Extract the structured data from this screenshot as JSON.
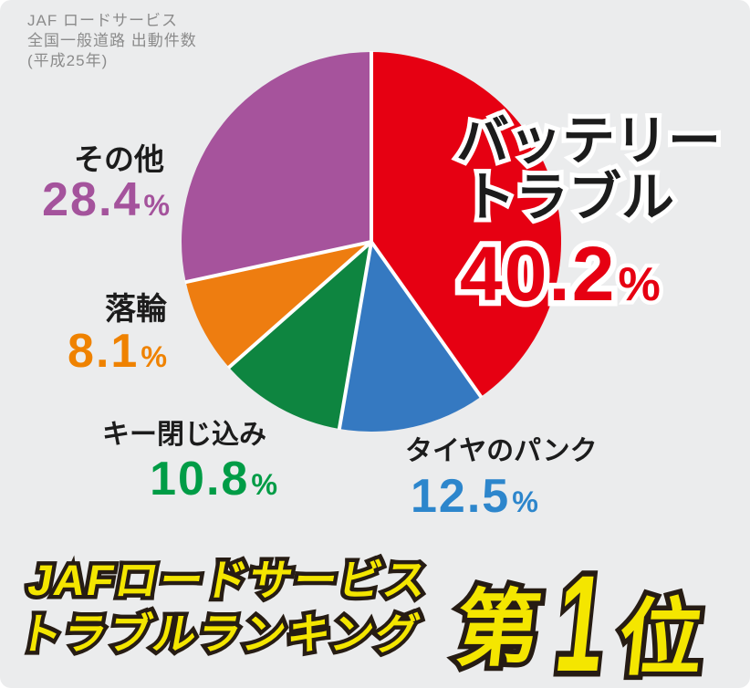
{
  "caption": {
    "line1": "JAF ロードサービス",
    "line2": "全国一般道路 出動件数",
    "line3": "(平成25年)",
    "color": "#8b8b8b"
  },
  "chart_data": {
    "type": "pie",
    "title": "JAF ロードサービス 全国一般道路 出動件数（平成25年）",
    "start_angle_deg": 0,
    "direction": "clockwise",
    "separator_color": "#ffffff",
    "background_color": "#ebeced",
    "percent_symbol": "%",
    "legend_position": "around-pie",
    "series": [
      {
        "name": "バッテリートラブル",
        "name_lines": [
          "バッテリー",
          "トラブル"
        ],
        "value": 40.2,
        "color": "#e60012",
        "label_color": "#e60012"
      },
      {
        "name": "タイヤのパンク",
        "value": 12.5,
        "color": "#3579c1",
        "label_color": "#2d86cc"
      },
      {
        "name": "キー閉じ込み",
        "value": 10.8,
        "color": "#0e8540",
        "label_color": "#009c46"
      },
      {
        "name": "落輪",
        "value": 8.1,
        "color": "#ee7d10",
        "label_color": "#ef8200"
      },
      {
        "name": "その他",
        "value": 28.4,
        "color": "#a6539c",
        "label_color": "#a4539c"
      }
    ]
  },
  "banner": {
    "line1": "JAFロードサービス",
    "line2": "トラブルランキング",
    "rank_prefix": "第",
    "rank_number": "1",
    "rank_suffix": "位",
    "text_color": "#f4e600",
    "outline_color": "#261c14"
  }
}
